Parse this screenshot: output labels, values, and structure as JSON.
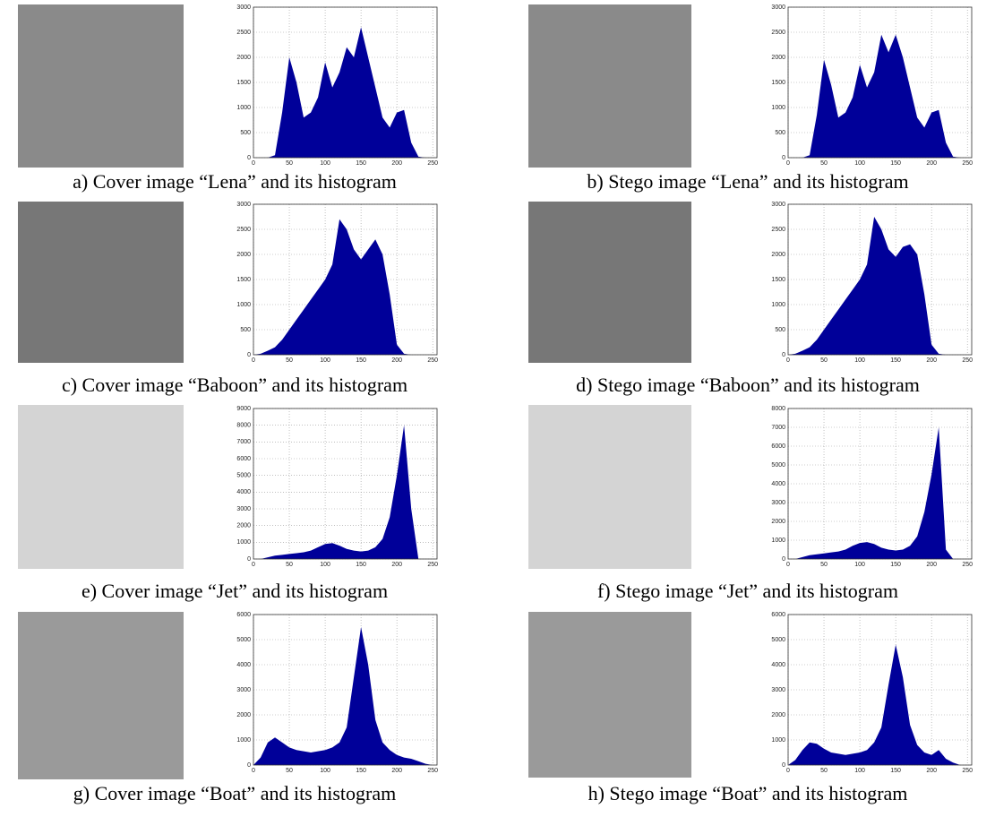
{
  "chart_data": [
    {
      "type": "area",
      "caption": "a) Cover image “Lena” and its histogram",
      "color": "#000099",
      "grid": true,
      "x": [
        0,
        10,
        20,
        30,
        40,
        50,
        60,
        70,
        80,
        90,
        100,
        110,
        120,
        130,
        140,
        150,
        160,
        170,
        180,
        190,
        200,
        210,
        220,
        230,
        240,
        250
      ],
      "values": [
        0,
        0,
        0,
        50,
        900,
        2000,
        1500,
        800,
        900,
        1200,
        1900,
        1400,
        1700,
        2200,
        2000,
        2600,
        2000,
        1400,
        800,
        600,
        900,
        950,
        300,
        20,
        0,
        0
      ],
      "xlim": [
        0,
        256
      ],
      "xticks": [
        0,
        50,
        100,
        150,
        200,
        250
      ],
      "ylim": [
        0,
        3000
      ],
      "yticks": [
        0,
        500,
        1000,
        1500,
        2000,
        2500,
        3000
      ]
    },
    {
      "type": "area",
      "caption": "b) Stego image “Lena” and its histogram",
      "color": "#000099",
      "grid": true,
      "x": [
        0,
        10,
        20,
        30,
        40,
        50,
        60,
        70,
        80,
        90,
        100,
        110,
        120,
        130,
        140,
        150,
        160,
        170,
        180,
        190,
        200,
        210,
        220,
        230,
        240,
        250
      ],
      "values": [
        0,
        0,
        0,
        50,
        850,
        1950,
        1450,
        800,
        900,
        1200,
        1850,
        1400,
        1700,
        2450,
        2100,
        2450,
        2000,
        1400,
        800,
        600,
        900,
        950,
        300,
        20,
        0,
        0
      ],
      "xlim": [
        0,
        256
      ],
      "xticks": [
        0,
        50,
        100,
        150,
        200,
        250
      ],
      "ylim": [
        0,
        3000
      ],
      "yticks": [
        0,
        500,
        1000,
        1500,
        2000,
        2500,
        3000
      ]
    },
    {
      "type": "area",
      "caption": "c) Cover image “Baboon” and its histogram",
      "color": "#000099",
      "grid": true,
      "x": [
        0,
        10,
        20,
        30,
        40,
        50,
        60,
        70,
        80,
        90,
        100,
        110,
        120,
        130,
        140,
        150,
        160,
        170,
        180,
        190,
        200,
        210,
        220,
        230,
        240,
        250
      ],
      "values": [
        0,
        20,
        80,
        150,
        300,
        500,
        700,
        900,
        1100,
        1300,
        1500,
        1800,
        2700,
        2500,
        2100,
        1900,
        2100,
        2300,
        2000,
        1200,
        200,
        20,
        0,
        0,
        0,
        0
      ],
      "xlim": [
        0,
        256
      ],
      "xticks": [
        0,
        50,
        100,
        150,
        200,
        250
      ],
      "ylim": [
        0,
        3000
      ],
      "yticks": [
        0,
        500,
        1000,
        1500,
        2000,
        2500,
        3000
      ]
    },
    {
      "type": "area",
      "caption": "d) Stego image “Baboon” and its histogram",
      "color": "#000099",
      "grid": true,
      "x": [
        0,
        10,
        20,
        30,
        40,
        50,
        60,
        70,
        80,
        90,
        100,
        110,
        120,
        130,
        140,
        150,
        160,
        170,
        180,
        190,
        200,
        210,
        220,
        230,
        240,
        250
      ],
      "values": [
        0,
        20,
        80,
        150,
        300,
        500,
        700,
        900,
        1100,
        1300,
        1500,
        1800,
        2750,
        2500,
        2100,
        1950,
        2150,
        2200,
        2000,
        1200,
        200,
        20,
        0,
        0,
        0,
        0
      ],
      "xlim": [
        0,
        256
      ],
      "xticks": [
        0,
        50,
        100,
        150,
        200,
        250
      ],
      "ylim": [
        0,
        3000
      ],
      "yticks": [
        0,
        500,
        1000,
        1500,
        2000,
        2500,
        3000
      ]
    },
    {
      "type": "area",
      "caption": "e) Cover image “Jet” and its histogram",
      "color": "#000099",
      "grid": true,
      "x": [
        0,
        10,
        20,
        30,
        40,
        50,
        60,
        70,
        80,
        90,
        100,
        110,
        120,
        130,
        140,
        150,
        160,
        170,
        180,
        190,
        200,
        210,
        220,
        230,
        240,
        250
      ],
      "values": [
        0,
        0,
        100,
        200,
        250,
        300,
        350,
        400,
        500,
        700,
        900,
        950,
        800,
        600,
        500,
        450,
        500,
        700,
        1200,
        2500,
        5000,
        8000,
        3000,
        0,
        0,
        0
      ],
      "xlim": [
        0,
        256
      ],
      "xticks": [
        0,
        50,
        100,
        150,
        200,
        250
      ],
      "ylim": [
        0,
        9000
      ],
      "yticks": [
        0,
        1000,
        2000,
        3000,
        4000,
        5000,
        6000,
        7000,
        8000,
        9000
      ]
    },
    {
      "type": "area",
      "caption": "f) Stego image “Jet” and its histogram",
      "color": "#000099",
      "grid": true,
      "x": [
        0,
        10,
        20,
        30,
        40,
        50,
        60,
        70,
        80,
        90,
        100,
        110,
        120,
        130,
        140,
        150,
        160,
        170,
        180,
        190,
        200,
        210,
        220,
        230,
        240,
        250
      ],
      "values": [
        0,
        0,
        100,
        200,
        250,
        300,
        350,
        400,
        500,
        700,
        850,
        900,
        800,
        600,
        500,
        450,
        500,
        700,
        1200,
        2500,
        4500,
        7000,
        500,
        0,
        0,
        0
      ],
      "xlim": [
        0,
        256
      ],
      "xticks": [
        0,
        50,
        100,
        150,
        200,
        250
      ],
      "ylim": [
        0,
        8000
      ],
      "yticks": [
        0,
        1000,
        2000,
        3000,
        4000,
        5000,
        6000,
        7000,
        8000
      ]
    },
    {
      "type": "area",
      "caption": "g) Cover image “Boat” and its histogram",
      "color": "#000099",
      "grid": true,
      "x": [
        0,
        10,
        20,
        30,
        40,
        50,
        60,
        70,
        80,
        90,
        100,
        110,
        120,
        130,
        140,
        150,
        160,
        170,
        180,
        190,
        200,
        210,
        220,
        230,
        240,
        250
      ],
      "values": [
        0,
        300,
        900,
        1100,
        900,
        700,
        600,
        550,
        500,
        550,
        600,
        700,
        900,
        1500,
        3500,
        5500,
        4000,
        1800,
        900,
        600,
        400,
        300,
        250,
        150,
        50,
        0
      ],
      "xlim": [
        0,
        256
      ],
      "xticks": [
        0,
        50,
        100,
        150,
        200,
        250
      ],
      "ylim": [
        0,
        6000
      ],
      "yticks": [
        0,
        1000,
        2000,
        3000,
        4000,
        5000,
        6000
      ]
    },
    {
      "type": "area",
      "caption": "h) Stego image “Boat” and its histogram",
      "color": "#000099",
      "grid": true,
      "x": [
        0,
        10,
        20,
        30,
        40,
        50,
        60,
        70,
        80,
        90,
        100,
        110,
        120,
        130,
        140,
        150,
        160,
        170,
        180,
        190,
        200,
        210,
        220,
        230,
        240,
        250
      ],
      "values": [
        0,
        200,
        600,
        900,
        850,
        650,
        500,
        450,
        400,
        450,
        500,
        600,
        900,
        1500,
        3200,
        4800,
        3500,
        1600,
        800,
        500,
        400,
        600,
        250,
        100,
        0,
        0
      ],
      "xlim": [
        0,
        256
      ],
      "xticks": [
        0,
        50,
        100,
        150,
        200,
        250
      ],
      "ylim": [
        0,
        6000
      ],
      "yticks": [
        0,
        1000,
        2000,
        3000,
        4000,
        5000,
        6000
      ]
    }
  ]
}
